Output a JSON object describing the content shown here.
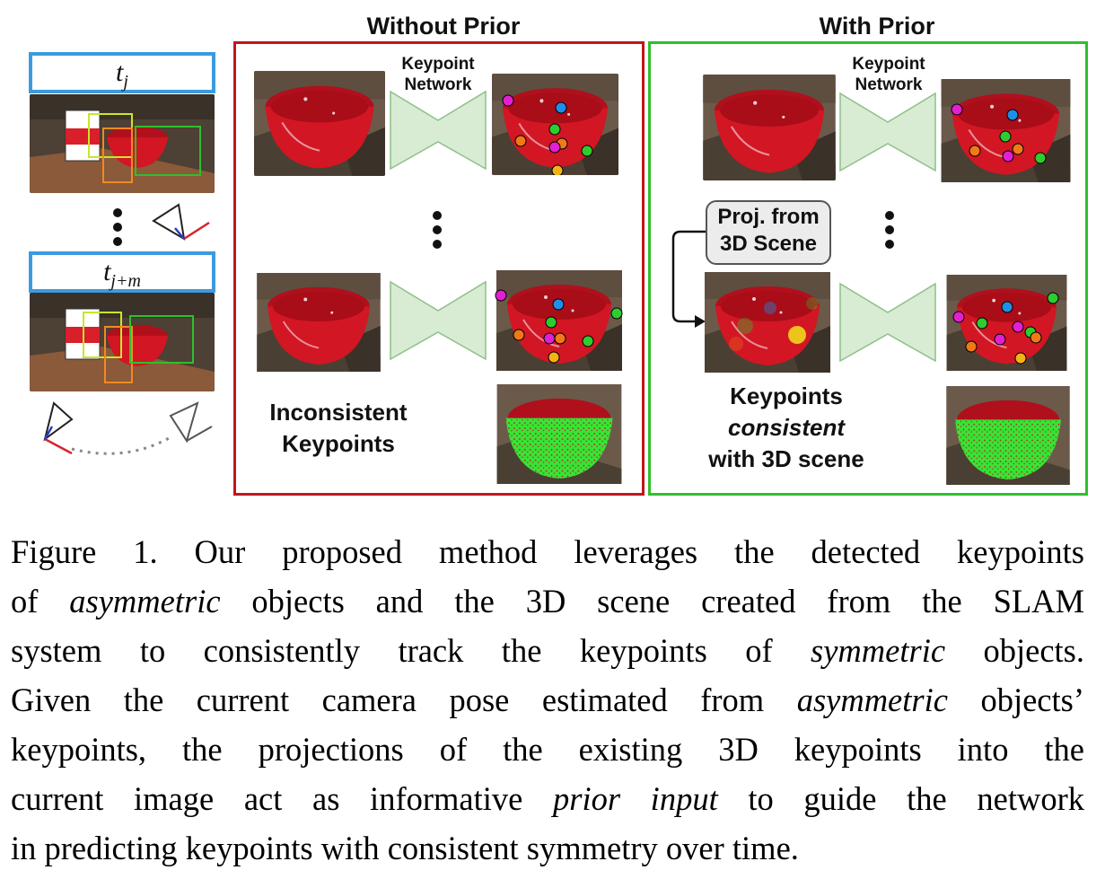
{
  "figure": {
    "without_prior_title": "Without Prior",
    "with_prior_title": "With Prior",
    "keypoint_network_label_line1": "Keypoint",
    "keypoint_network_label_line2": "Network",
    "time_label_top": "t",
    "time_label_top_sub": "j",
    "time_label_bottom": "t",
    "time_label_bottom_sub": "j+m",
    "inconsistent_line1": "Inconsistent",
    "inconsistent_line2": "Keypoints",
    "consistent_line1": "Keypoints",
    "consistent_line2": "consistent",
    "consistent_line3": "with 3D scene",
    "proj_line1": "Proj. from",
    "proj_line2": "3D Scene",
    "colors": {
      "without_prior_border": "#c0171c",
      "with_prior_border": "#2ec02e",
      "time_label_border": "#3b9be0",
      "network_fill": "#d7ecd3",
      "bowl": "#d21624"
    }
  },
  "caption": {
    "line1": "Figure 1. Our proposed method leverages the detected keypoints",
    "line2_a": "of ",
    "line2_em": "asymmetric",
    "line2_b": " objects and the 3D scene created from the SLAM",
    "line3_a": "system to consistently track the keypoints of ",
    "line3_em": "symmetric",
    "line3_b": " objects.",
    "line4_a": "Given the current camera pose estimated from ",
    "line4_em": "asymmetric",
    "line4_b": " objects’",
    "line5": "keypoints, the projections of the existing 3D keypoints into the",
    "line6_a": "current image act as informative ",
    "line6_em": "prior input",
    "line6_b": " to guide the network",
    "line7": "in predicting keypoints with consistent symmetry over time."
  }
}
